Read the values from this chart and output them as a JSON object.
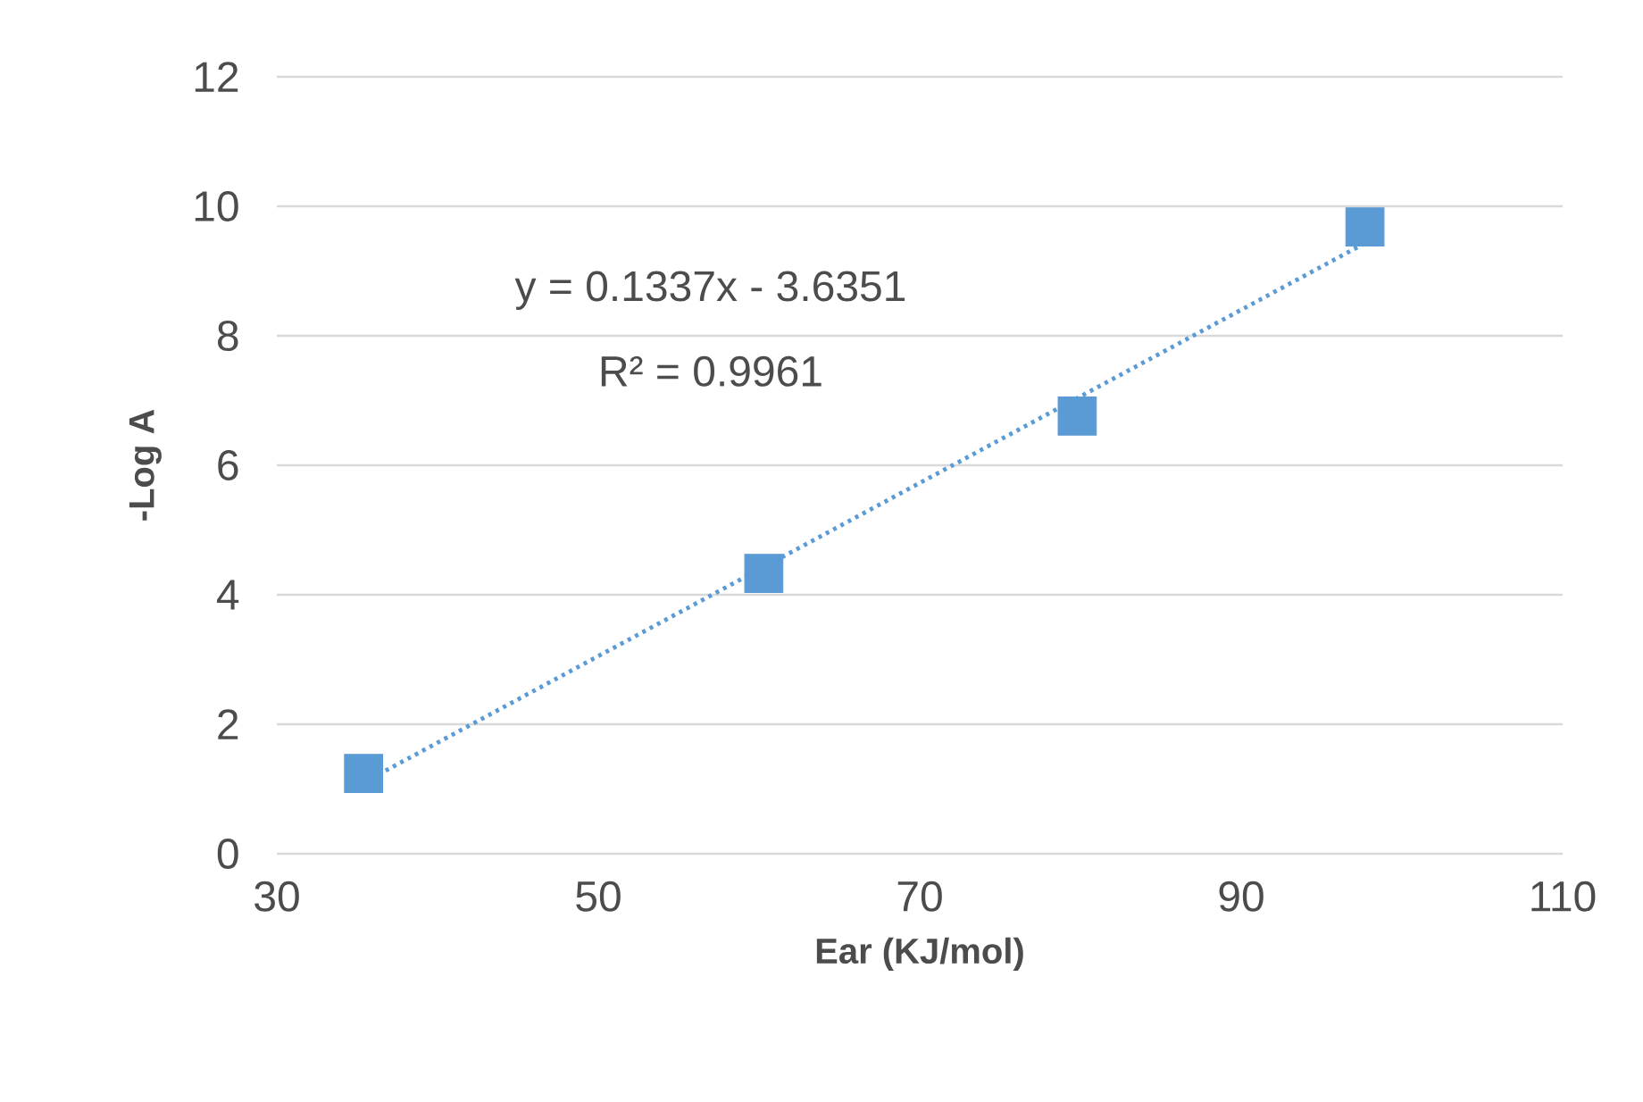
{
  "chart_data": {
    "type": "scatter",
    "xlabel": "Ear (KJ/mol)",
    "ylabel": "-Log A",
    "xlim": [
      30,
      110
    ],
    "xticks": [
      30,
      50,
      70,
      90,
      110
    ],
    "ylim": [
      0,
      12
    ],
    "yticks": [
      0,
      2,
      4,
      6,
      8,
      10,
      12
    ],
    "grid": "y",
    "series": [
      {
        "marker": "square",
        "color": "#5b9bd5",
        "x": [
          35.4,
          60.3,
          79.8,
          97.7
        ],
        "values": [
          1.24,
          4.33,
          6.76,
          9.68
        ]
      },
      {
        "type": "line",
        "marker": "none",
        "line_style": "dotted",
        "color": "#5b9bd5",
        "x": [
          35.4,
          97.7
        ],
        "values": [
          1.1,
          9.43
        ]
      }
    ],
    "annotations": [
      "y = 0.1337x - 3.6351",
      "R² = 0.9961"
    ]
  }
}
